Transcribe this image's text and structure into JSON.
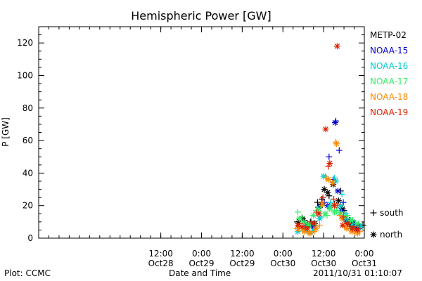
{
  "chart_data": {
    "type": "scatter",
    "title": "Hemispheric Power [GW]",
    "xlabel": "Date and Time",
    "ylabel": "P [GW]",
    "xlim": [
      -24,
      72
    ],
    "ylim": [
      0,
      130
    ],
    "x_axis_units": "hours from Oct28 00:00",
    "yticks": [
      0,
      20,
      40,
      60,
      80,
      100,
      120
    ],
    "xticks": [
      {
        "value": 12,
        "time": "12:00",
        "date": "Oct28"
      },
      {
        "value": 24,
        "time": "0:00",
        "date": "Oct29"
      },
      {
        "value": 36,
        "time": "12:00",
        "date": "Oct29"
      },
      {
        "value": 48,
        "time": "0:00",
        "date": "Oct30"
      },
      {
        "value": 60,
        "time": "12:00",
        "date": "Oct30"
      },
      {
        "value": 72,
        "time": "0:00",
        "date": "Oct31"
      }
    ],
    "grid": false,
    "legend_position": "right",
    "marker_legend": [
      {
        "marker": "+",
        "label": "south"
      },
      {
        "marker": "*",
        "label": "north"
      }
    ],
    "series": [
      {
        "name": "METP-02",
        "color": "#000000",
        "south": [
          [
            52.2,
            10
          ],
          [
            54.4,
            11
          ],
          [
            56.1,
            10
          ],
          [
            58.2,
            22
          ],
          [
            59.5,
            24
          ],
          [
            61.6,
            26
          ],
          [
            63.2,
            21
          ],
          [
            65,
            29
          ],
          [
            66,
            17
          ],
          [
            67.6,
            10
          ],
          [
            69.2,
            8
          ],
          [
            70.8,
            7
          ],
          [
            71.6,
            8
          ]
        ],
        "north": [
          [
            52.6,
            9
          ],
          [
            53.8,
            12
          ],
          [
            55.2,
            8
          ],
          [
            56.4,
            8
          ],
          [
            57.4,
            9
          ],
          [
            59,
            20
          ],
          [
            60.2,
            30
          ],
          [
            61.2,
            28
          ],
          [
            62.8,
            33
          ],
          [
            64.4,
            23
          ],
          [
            65.6,
            18
          ],
          [
            66.8,
            10
          ],
          [
            68,
            7
          ],
          [
            69.6,
            6
          ],
          [
            70.6,
            7
          ]
        ]
      },
      {
        "name": "NOAA-15",
        "color": "#0000cc",
        "south": [
          [
            56.8,
            7
          ],
          [
            58.4,
            19
          ],
          [
            60.2,
            22
          ],
          [
            61.6,
            50
          ],
          [
            62.8,
            36
          ],
          [
            63.6,
            72
          ],
          [
            64.6,
            54
          ],
          [
            65.8,
            22
          ],
          [
            66.6,
            14
          ],
          [
            67.6,
            11
          ],
          [
            69,
            9
          ],
          [
            70.2,
            8
          ]
        ],
        "north": [
          [
            57.2,
            6
          ],
          [
            58.6,
            18
          ],
          [
            59.6,
            21
          ],
          [
            61.2,
            20
          ],
          [
            63.4,
            71
          ],
          [
            64.2,
            29
          ],
          [
            65.2,
            17
          ],
          [
            66.4,
            12
          ],
          [
            68.4,
            10
          ],
          [
            69.6,
            6
          ]
        ]
      },
      {
        "name": "NOAA-16",
        "color": "#00cccc",
        "south": [
          [
            53.6,
            6
          ],
          [
            55,
            5
          ],
          [
            56.6,
            4
          ],
          [
            57.6,
            8
          ],
          [
            59.2,
            13
          ],
          [
            60.6,
            38
          ],
          [
            62,
            22
          ],
          [
            63.2,
            37
          ],
          [
            64.2,
            19
          ],
          [
            65.4,
            27
          ],
          [
            66.6,
            15
          ],
          [
            67.8,
            11
          ],
          [
            69.4,
            9
          ],
          [
            70.4,
            7
          ]
        ],
        "north": [
          [
            52.4,
            4
          ],
          [
            54.2,
            6
          ],
          [
            56,
            3
          ],
          [
            57,
            5
          ],
          [
            58.8,
            12
          ],
          [
            60,
            38
          ],
          [
            61.8,
            19
          ],
          [
            63.6,
            35
          ],
          [
            65,
            20
          ],
          [
            66,
            13
          ],
          [
            67.2,
            10
          ],
          [
            68.6,
            8
          ],
          [
            70.8,
            7
          ]
        ]
      },
      {
        "name": "NOAA-17",
        "color": "#33ee66",
        "south": [
          [
            52.4,
            16
          ],
          [
            53.6,
            13
          ],
          [
            54.8,
            9
          ],
          [
            56.2,
            8
          ],
          [
            57.8,
            17
          ],
          [
            59.4,
            20
          ],
          [
            61,
            14
          ],
          [
            62.4,
            20
          ],
          [
            63.8,
            17
          ],
          [
            65.2,
            16
          ],
          [
            67,
            14
          ],
          [
            68.6,
            11
          ],
          [
            70.4,
            9
          ]
        ],
        "north": [
          [
            52.8,
            12
          ],
          [
            54,
            10
          ],
          [
            55.4,
            8
          ],
          [
            57,
            14
          ],
          [
            58.6,
            18
          ],
          [
            60.4,
            15
          ],
          [
            61.8,
            18
          ],
          [
            63.2,
            16
          ],
          [
            64.8,
            15
          ],
          [
            66.4,
            13
          ],
          [
            68,
            11
          ],
          [
            69.8,
            9
          ]
        ]
      },
      {
        "name": "NOAA-18",
        "color": "#ff8800",
        "south": [
          [
            52.2,
            6
          ],
          [
            53.8,
            5
          ],
          [
            55.4,
            4
          ],
          [
            57.2,
            4
          ],
          [
            58.8,
            8
          ],
          [
            60.8,
            37
          ],
          [
            63.6,
            59
          ],
          [
            64.8,
            14
          ],
          [
            66.2,
            7
          ],
          [
            67.8,
            5
          ],
          [
            69.2,
            4
          ],
          [
            70.6,
            4
          ]
        ],
        "north": [
          [
            52.6,
            6
          ],
          [
            54.4,
            4
          ],
          [
            56,
            3
          ],
          [
            57.8,
            6
          ],
          [
            59.6,
            21
          ],
          [
            61.4,
            36
          ],
          [
            62.6,
            34
          ],
          [
            63.8,
            58
          ],
          [
            65.4,
            12
          ],
          [
            66.8,
            6
          ],
          [
            68.4,
            4
          ],
          [
            70,
            3
          ]
        ]
      },
      {
        "name": "NOAA-19",
        "color": "#dd2200",
        "south": [
          [
            53,
            9
          ],
          [
            54.6,
            7
          ],
          [
            56.4,
            10
          ],
          [
            58,
            16
          ],
          [
            59.8,
            25
          ],
          [
            61.4,
            44
          ],
          [
            63,
            24
          ],
          [
            64.2,
            21
          ],
          [
            65.8,
            13
          ],
          [
            67.2,
            9
          ],
          [
            68.8,
            7
          ],
          [
            70.4,
            6
          ]
        ],
        "north": [
          [
            52.4,
            8
          ],
          [
            53.6,
            7
          ],
          [
            55.2,
            6
          ],
          [
            57,
            9
          ],
          [
            58.6,
            15
          ],
          [
            60.6,
            67
          ],
          [
            61.8,
            46
          ],
          [
            63.2,
            20
          ],
          [
            64,
            118
          ],
          [
            65.6,
            8
          ],
          [
            67,
            9
          ],
          [
            68.6,
            6
          ],
          [
            70,
            5
          ]
        ]
      }
    ]
  },
  "footer": {
    "left": "Plot: CCMC",
    "center": "Date and Time",
    "right": "2011/10/31 01:10:07"
  }
}
